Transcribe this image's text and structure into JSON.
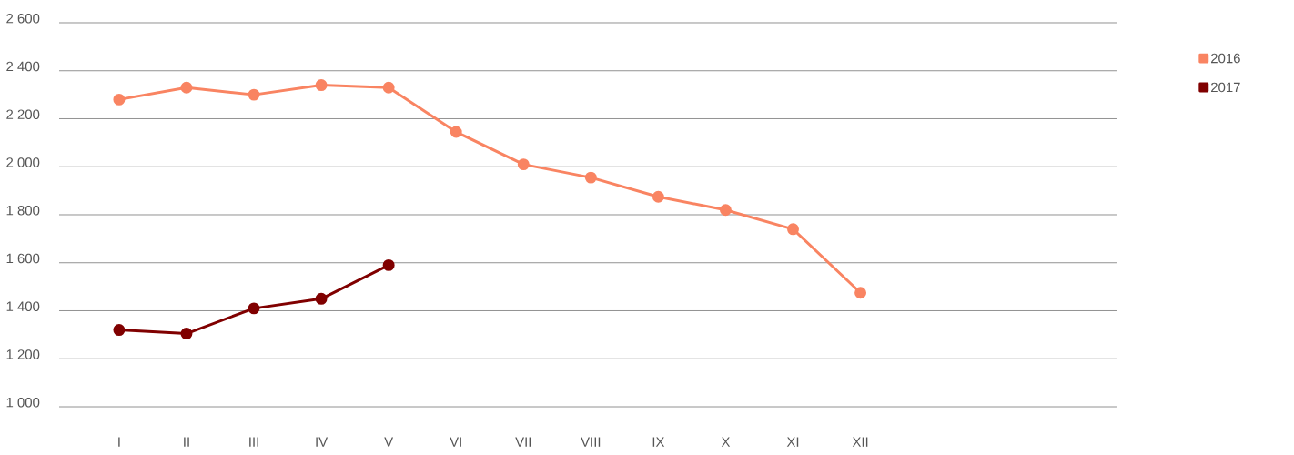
{
  "chart_data": {
    "type": "line",
    "categories": [
      "I",
      "II",
      "III",
      "IV",
      "V",
      "VI",
      "VII",
      "VIII",
      "IX",
      "X",
      "XI",
      "XII"
    ],
    "series": [
      {
        "name": "2016",
        "color": "#f98462",
        "values": [
          2280,
          2330,
          2300,
          2340,
          2330,
          2145,
          2010,
          1955,
          1875,
          1820,
          1740,
          1475
        ]
      },
      {
        "name": "2017",
        "color": "#800000",
        "values": [
          1320,
          1305,
          1410,
          1450,
          1590,
          null,
          null,
          null,
          null,
          null,
          null,
          null
        ]
      }
    ],
    "ylim": [
      1000,
      2600
    ],
    "yticks": [
      {
        "value": 1000,
        "label": "1 000"
      },
      {
        "value": 1200,
        "label": "1 200"
      },
      {
        "value": 1400,
        "label": "1 400"
      },
      {
        "value": 1600,
        "label": "1 600"
      },
      {
        "value": 1800,
        "label": "1 800"
      },
      {
        "value": 2000,
        "label": "2 000"
      },
      {
        "value": 2200,
        "label": "2 200"
      },
      {
        "value": 2400,
        "label": "2 400"
      },
      {
        "value": 2600,
        "label": "2 600"
      }
    ],
    "grid": "y",
    "legend": "right",
    "marker": "circle",
    "line_style": "solid"
  }
}
